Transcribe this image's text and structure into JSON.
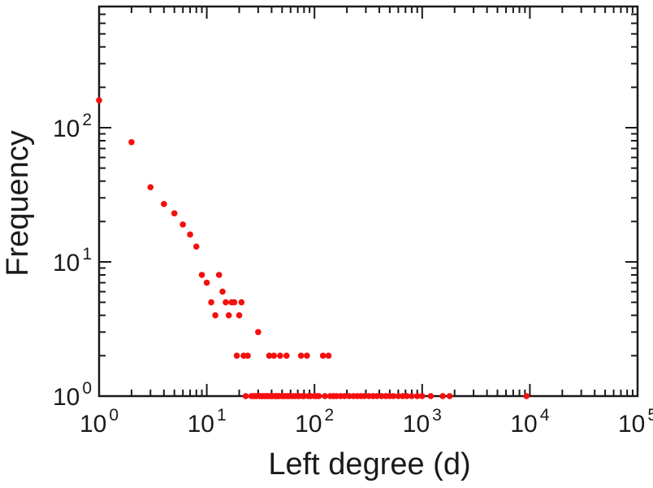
{
  "chart_data": {
    "type": "scatter",
    "title": "",
    "xlabel": "Left degree (d)",
    "ylabel": "Frequency",
    "x_scale": "log",
    "y_scale": "log",
    "xlim": [
      1,
      100000
    ],
    "ylim": [
      1,
      800
    ],
    "x_tick_exponents": [
      0,
      1,
      2,
      3,
      4,
      5
    ],
    "y_tick_exponents": [
      0,
      1,
      2
    ],
    "grid": false,
    "legend": false,
    "point_color": "#f40f0f",
    "frame_color": "#1a1a1a",
    "points": [
      [
        1,
        160
      ],
      [
        2,
        78
      ],
      [
        3,
        36
      ],
      [
        4,
        27
      ],
      [
        5,
        23
      ],
      [
        6,
        19
      ],
      [
        7,
        16
      ],
      [
        8,
        13
      ],
      [
        9,
        8
      ],
      [
        10,
        7
      ],
      [
        11,
        5
      ],
      [
        12,
        4
      ],
      [
        13,
        8
      ],
      [
        14,
        6
      ],
      [
        15,
        5
      ],
      [
        16,
        4
      ],
      [
        17,
        5
      ],
      [
        18,
        5
      ],
      [
        20,
        4
      ],
      [
        21,
        5
      ],
      [
        30,
        3
      ],
      [
        19,
        2
      ],
      [
        22,
        2
      ],
      [
        24,
        2
      ],
      [
        38,
        2
      ],
      [
        42,
        2
      ],
      [
        48,
        2
      ],
      [
        55,
        2
      ],
      [
        75,
        2
      ],
      [
        85,
        2
      ],
      [
        120,
        2
      ],
      [
        135,
        2
      ],
      [
        23,
        1
      ],
      [
        26,
        1
      ],
      [
        27,
        1
      ],
      [
        28,
        1
      ],
      [
        29,
        1
      ],
      [
        31,
        1
      ],
      [
        32,
        1
      ],
      [
        33,
        1
      ],
      [
        34,
        1
      ],
      [
        35,
        1
      ],
      [
        36,
        1
      ],
      [
        37,
        1
      ],
      [
        39,
        1
      ],
      [
        40,
        1
      ],
      [
        41,
        1
      ],
      [
        43,
        1
      ],
      [
        44,
        1
      ],
      [
        45,
        1
      ],
      [
        46,
        1
      ],
      [
        47,
        1
      ],
      [
        50,
        1
      ],
      [
        52,
        1
      ],
      [
        54,
        1
      ],
      [
        56,
        1
      ],
      [
        58,
        1
      ],
      [
        60,
        1
      ],
      [
        63,
        1
      ],
      [
        66,
        1
      ],
      [
        70,
        1
      ],
      [
        72,
        1
      ],
      [
        78,
        1
      ],
      [
        80,
        1
      ],
      [
        88,
        1
      ],
      [
        92,
        1
      ],
      [
        100,
        1
      ],
      [
        105,
        1
      ],
      [
        110,
        1
      ],
      [
        125,
        1
      ],
      [
        140,
        1
      ],
      [
        150,
        1
      ],
      [
        160,
        1
      ],
      [
        175,
        1
      ],
      [
        190,
        1
      ],
      [
        210,
        1
      ],
      [
        230,
        1
      ],
      [
        250,
        1
      ],
      [
        270,
        1
      ],
      [
        290,
        1
      ],
      [
        320,
        1
      ],
      [
        350,
        1
      ],
      [
        380,
        1
      ],
      [
        420,
        1
      ],
      [
        460,
        1
      ],
      [
        500,
        1
      ],
      [
        540,
        1
      ],
      [
        600,
        1
      ],
      [
        660,
        1
      ],
      [
        720,
        1
      ],
      [
        800,
        1
      ],
      [
        900,
        1
      ],
      [
        1000,
        1
      ],
      [
        1200,
        1
      ],
      [
        1550,
        1
      ],
      [
        1800,
        1
      ],
      [
        9300,
        1
      ]
    ]
  }
}
